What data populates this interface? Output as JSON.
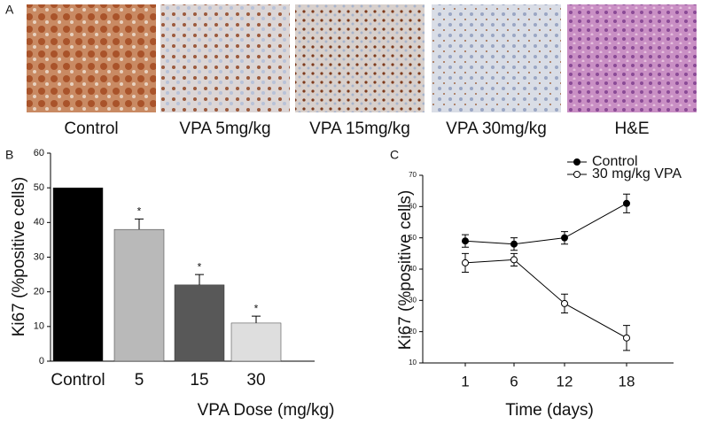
{
  "panel_a": {
    "label": "A",
    "captions": [
      "Control",
      "VPA 5mg/kg",
      "VPA 15mg/kg",
      "VPA 30mg/kg",
      "H&E"
    ]
  },
  "chart_data": [
    {
      "type": "bar",
      "panel_label": "B",
      "categories": [
        "Control",
        "5",
        "15",
        "30"
      ],
      "values": [
        50,
        38,
        22,
        11
      ],
      "errors": [
        null,
        3,
        3,
        2
      ],
      "annotations": [
        null,
        "*",
        "*",
        "*"
      ],
      "colors": [
        "#000000",
        "#b9b9b9",
        "#585858",
        "#dedede"
      ],
      "ylim": [
        0,
        60
      ],
      "yticks": [
        0,
        10,
        20,
        30,
        40,
        50,
        60
      ],
      "y_label": "Ki67 (%positive cells)",
      "x_label": "VPA Dose (mg/kg)"
    },
    {
      "type": "line",
      "panel_label": "C",
      "categories": [
        "1",
        "6",
        "12",
        "18"
      ],
      "series": [
        {
          "name": "Control",
          "color": "#000000",
          "marker": "filled",
          "values": [
            49,
            48,
            50,
            61
          ],
          "errors": [
            2,
            2,
            2,
            3
          ]
        },
        {
          "name": "30 mg/kg VPA",
          "color": "#000000",
          "marker": "open",
          "values": [
            42,
            43,
            29,
            18
          ],
          "errors": [
            3,
            2,
            3,
            4
          ]
        }
      ],
      "ylim": [
        10,
        70
      ],
      "yticks": [
        10,
        20,
        30,
        40,
        50,
        60,
        70
      ],
      "y_label": "Ki67 (%positive cells)",
      "x_label": "Time (days)",
      "legend": "top-right"
    }
  ]
}
